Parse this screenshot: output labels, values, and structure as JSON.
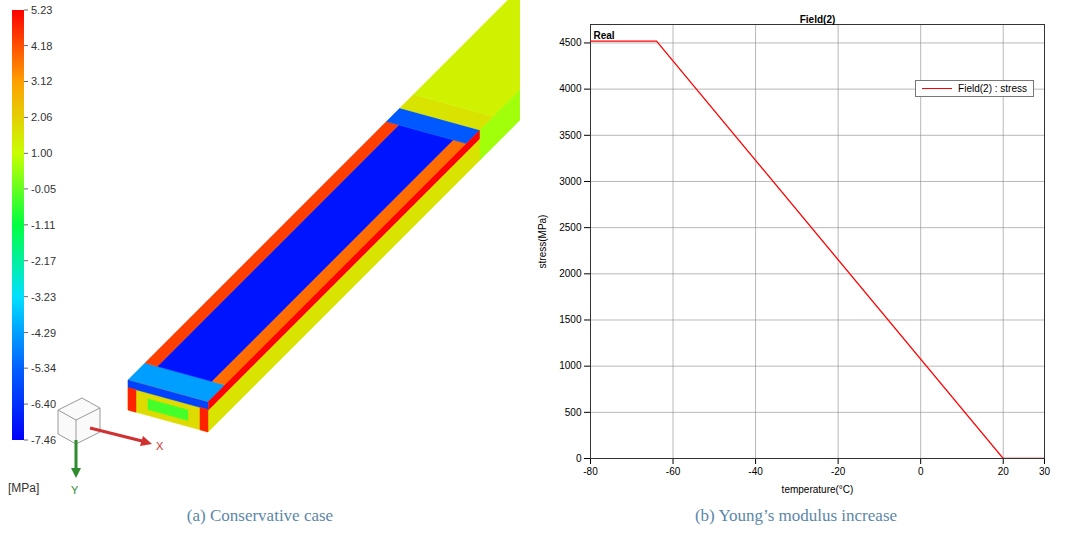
{
  "chart_data": [
    {
      "type": "contour",
      "caption": "(a) Conservative case",
      "xlabel": "X",
      "ylabel": "Y",
      "colorbar": {
        "label": "[MPa]",
        "range": [
          -7.46,
          5.23
        ],
        "ticks": [
          5.23,
          4.18,
          3.12,
          2.06,
          {
            "value": 1,
            "label": "1.00"
          },
          -0.05,
          -1.11,
          -2.17,
          -3.23,
          -4.29,
          -5.34,
          {
            "value": -6.4,
            "label": "-6.40"
          },
          -7.46
        ],
        "colors": [
          "#0000ff",
          "#0060ff",
          "#00e0ff",
          "#00ff40",
          "#c8ff00",
          "#ffa000",
          "#ff0000"
        ]
      },
      "stress_regions": [
        -4.3,
        4.4,
        -7.0,
        3.8,
        -5.5,
        1.6,
        1.3,
        5.2,
        1.6,
        0.6,
        1.8,
        -6.0,
        -0.4,
        4.8,
        4.8
      ]
    },
    {
      "type": "line",
      "caption": "(b) Young’s modulus increase",
      "title": "Field(2)",
      "annotations": [
        "Real"
      ],
      "xlabel": "temperature(°C)",
      "ylabel": "stress(MPa)",
      "x": [
        -80,
        -64,
        20,
        30
      ],
      "series": [
        {
          "name": "Field(2) : stress",
          "color": "#ff0000",
          "values": [
            4520,
            4520,
            0,
            0
          ]
        }
      ],
      "xlim": [
        -80,
        30
      ],
      "xticks": [
        -80,
        -60,
        -40,
        -20,
        0,
        20,
        30
      ],
      "ylim": [
        0,
        4700
      ],
      "yticks": [
        0,
        500,
        1000,
        1500,
        2000,
        2500,
        3000,
        3500,
        4000,
        4500
      ],
      "grid": true,
      "legend": "top-right"
    }
  ]
}
